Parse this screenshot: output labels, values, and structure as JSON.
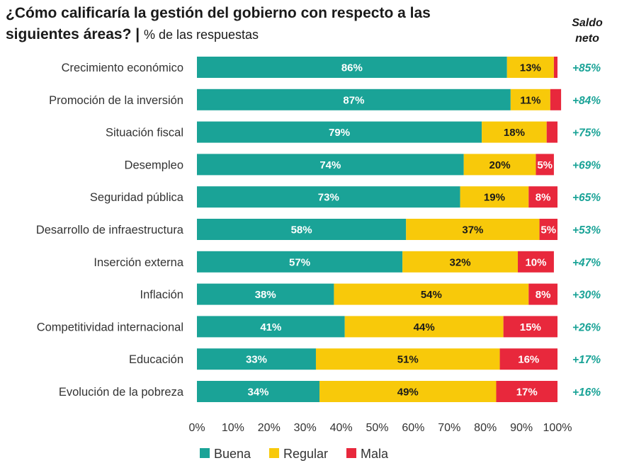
{
  "title": {
    "line1": "¿Cómo calificaría la gestión del gobierno con respecto a las",
    "line2": "siguientes áreas? |",
    "subtitle": "% de las respuestas"
  },
  "saldo_header": {
    "line1": "Saldo",
    "line2": "neto"
  },
  "colors": {
    "Buena": "#1aa397",
    "Regular": "#f8c90a",
    "Mala": "#e8283c",
    "saldo_text": "#1aa397"
  },
  "chart_data": {
    "type": "bar",
    "orientation": "horizontal",
    "stacked": true,
    "categories": [
      "Crecimiento económico",
      "Promoción de la inversión",
      "Situación fiscal",
      "Desempleo",
      "Seguridad pública",
      "Desarrollo de infraestructura",
      "Inserción externa",
      "Inflación",
      "Competitividad internacional",
      "Educación",
      "Evolución de la pobreza"
    ],
    "series": [
      {
        "name": "Buena",
        "values": [
          86,
          87,
          79,
          74,
          73,
          58,
          57,
          38,
          41,
          33,
          34
        ],
        "labels": [
          "86%",
          "87%",
          "79%",
          "74%",
          "73%",
          "58%",
          "57%",
          "38%",
          "41%",
          "33%",
          "34%"
        ]
      },
      {
        "name": "Regular",
        "values": [
          13,
          11,
          18,
          20,
          19,
          37,
          32,
          54,
          44,
          51,
          49
        ],
        "labels": [
          "13%",
          "11%",
          "18%",
          "20%",
          "19%",
          "37%",
          "32%",
          "54%",
          "44%",
          "51%",
          "49%"
        ]
      },
      {
        "name": "Mala",
        "values": [
          1,
          3,
          3,
          5,
          8,
          5,
          10,
          8,
          15,
          16,
          17
        ],
        "labels": [
          "",
          "",
          "",
          "5%",
          "8%",
          "5%",
          "10%",
          "8%",
          "15%",
          "16%",
          "17%"
        ]
      }
    ],
    "saldo_neto": [
      "+85%",
      "+84%",
      "+75%",
      "+69%",
      "+65%",
      "+53%",
      "+47%",
      "+30%",
      "+26%",
      "+17%",
      "+16%"
    ],
    "xlim": [
      0,
      100
    ],
    "xticks": [
      "0%",
      "10%",
      "20%",
      "30%",
      "40%",
      "50%",
      "60%",
      "70%",
      "80%",
      "90%",
      "100%"
    ],
    "legend": [
      "Buena",
      "Regular",
      "Mala"
    ],
    "legend_position": "bottom",
    "grid": false
  }
}
